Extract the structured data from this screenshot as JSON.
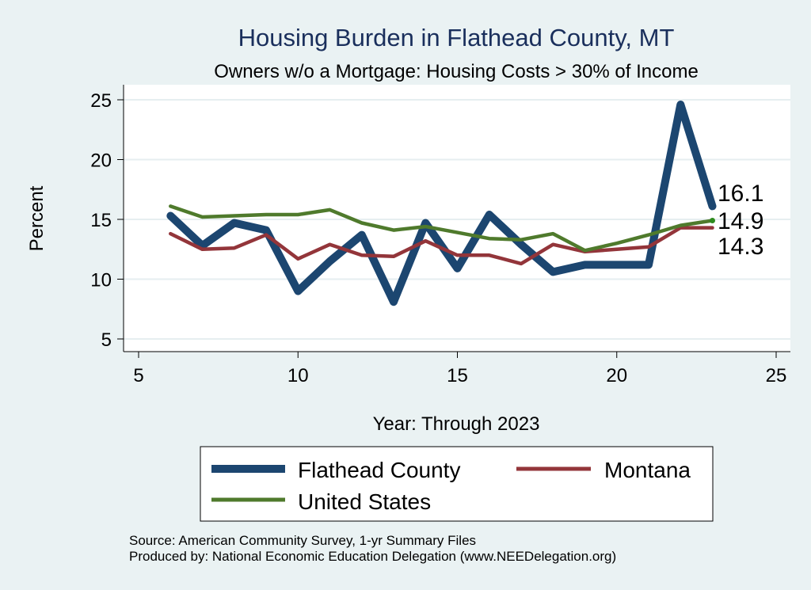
{
  "chart_data": {
    "type": "line",
    "title": "Housing Burden in Flathead County, MT",
    "subtitle": "Owners w/o a Mortgage: Housing Costs > 30% of Income",
    "xlabel": "Year: Through 2023",
    "ylabel": "Percent",
    "xlim": [
      5,
      25
    ],
    "ylim": [
      5,
      25
    ],
    "xticks": [
      5,
      10,
      15,
      20,
      25
    ],
    "yticks": [
      5,
      10,
      15,
      20,
      25
    ],
    "x": [
      6,
      7,
      8,
      9,
      10,
      11,
      12,
      13,
      14,
      15,
      16,
      17,
      18,
      19,
      20,
      21,
      22,
      23
    ],
    "series": [
      {
        "name": "Flathead County",
        "color": "#1c4670",
        "values": [
          15.3,
          12.8,
          14.7,
          14.1,
          9.0,
          11.5,
          13.7,
          8.1,
          14.7,
          10.9,
          15.4,
          12.9,
          10.6,
          11.2,
          11.2,
          11.2,
          24.6,
          16.1
        ]
      },
      {
        "name": "Montana",
        "color": "#93353a",
        "values": [
          13.8,
          12.5,
          12.6,
          13.7,
          11.7,
          12.9,
          12.0,
          11.9,
          13.2,
          12.0,
          12.0,
          11.3,
          12.9,
          12.3,
          12.5,
          12.7,
          14.3,
          14.3
        ]
      },
      {
        "name": "United States",
        "color": "#4f7a2c",
        "values": [
          16.1,
          15.2,
          15.3,
          15.4,
          15.4,
          15.8,
          14.7,
          14.1,
          14.4,
          13.9,
          13.4,
          13.3,
          13.8,
          12.4,
          13.0,
          13.7,
          14.5,
          14.9
        ]
      }
    ],
    "end_labels": [
      {
        "series": "Flathead County",
        "text": "16.1"
      },
      {
        "series": "United States",
        "text": "14.9"
      },
      {
        "series": "Montana",
        "text": "14.3"
      }
    ],
    "legend_position": "bottom",
    "grid": true
  },
  "source_note": "Source: American Community Survey, 1-yr Summary Files",
  "produced_note": "Produced by: National Economic Education Delegation (www.NEEDelegation.org)"
}
